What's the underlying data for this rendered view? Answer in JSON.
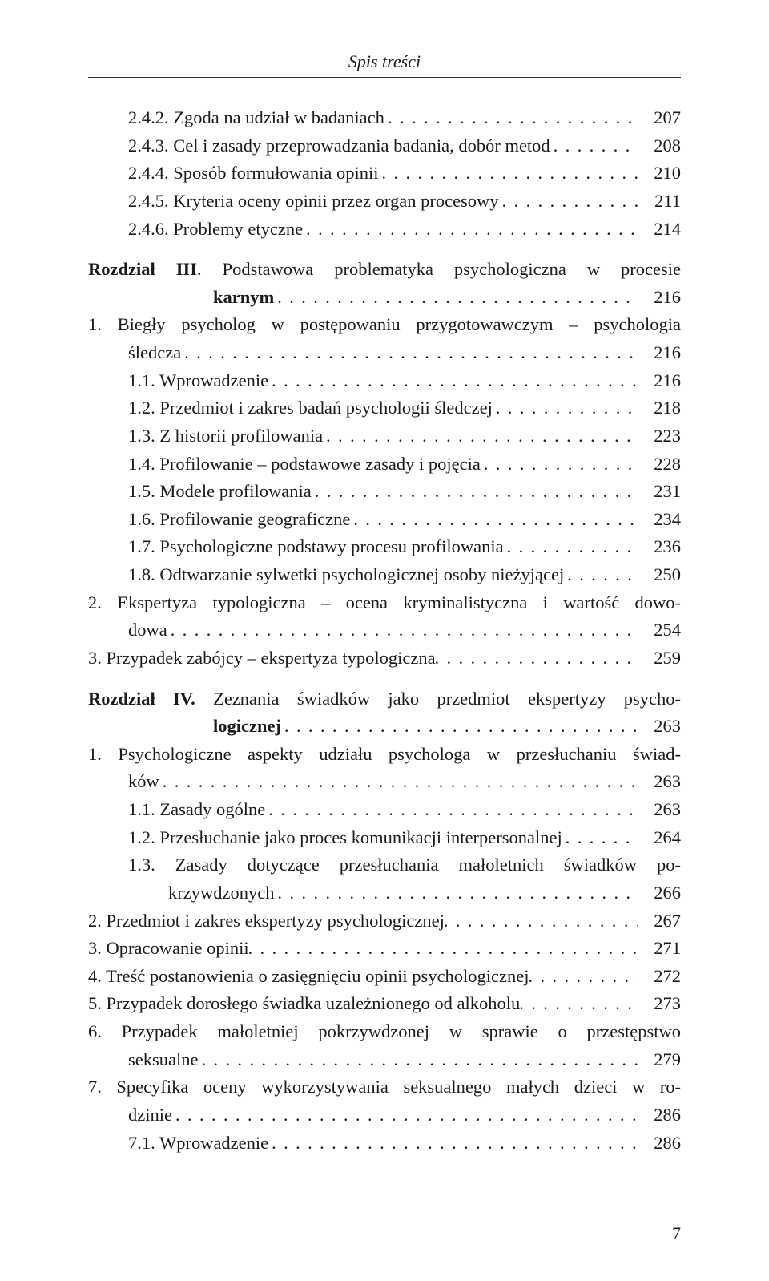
{
  "header": "Spis treści",
  "pageNumber": "7",
  "lines": [
    {
      "cls": "indent-1",
      "label": "2.4.2. Zgoda na udział w badaniach",
      "page": "207"
    },
    {
      "cls": "indent-1",
      "label": "2.4.3. Cel i zasady przeprowadzania badania, dobór metod",
      "sep": ". .",
      "page": "208"
    },
    {
      "cls": "indent-1",
      "label": "2.4.4. Sposób formułowania opinii",
      "page": "210"
    },
    {
      "cls": "indent-1",
      "label": "2.4.5. Kryteria oceny opinii przez organ procesowy",
      "page": "211"
    },
    {
      "cls": "indent-1",
      "label": "2.4.6. Problemy etyczne",
      "page": "214"
    },
    {
      "type": "ml",
      "cls": "hang-c",
      "first": "Rozdział III.  Podstawowa  problematyka  psychologiczna  w  procesie",
      "boldLen": 12,
      "lastLabel": "karnym",
      "lastCls": "",
      "lastPad": 156,
      "page": "216",
      "top": true
    },
    {
      "type": "ml",
      "cls": "hang-1",
      "first": "1. Biegły psycholog w postępowaniu przygotowawczym – psychologia",
      "lastLabel": "śledcza",
      "lastCls": "indent-1",
      "page": "216"
    },
    {
      "cls": "indent-1",
      "label": "1.1. Wprowadzenie",
      "page": "216"
    },
    {
      "cls": "indent-1",
      "label": "1.2. Przedmiot i zakres badań psychologii śledczej",
      "page": "218"
    },
    {
      "cls": "indent-1",
      "label": "1.3. Z historii profilowania",
      "page": "223"
    },
    {
      "cls": "indent-1",
      "label": "1.4. Profilowanie – podstawowe zasady i pojęcia",
      "page": "228"
    },
    {
      "cls": "indent-1",
      "label": "1.5. Modele profilowania",
      "page": "231"
    },
    {
      "cls": "indent-1",
      "label": "1.6. Profilowanie geograficzne",
      "page": "234"
    },
    {
      "cls": "indent-1",
      "label": "1.7. Psychologiczne podstawy procesu profilowania",
      "page": "236"
    },
    {
      "cls": "indent-1",
      "label": "1.8. Odtwarzanie sylwetki psychologicznej osoby nieżyjącej",
      "page": "250"
    },
    {
      "type": "ml",
      "cls": "hang-1",
      "first": "2. Ekspertyza typologiczna – ocena kryminalistyczna i wartość dowo-",
      "lastLabel": "dowa",
      "lastCls": "indent-1",
      "page": "254"
    },
    {
      "cls": "hang-1",
      "label": "3. Przypadek zabójcy – ekspertyza typologiczna",
      "page": "259"
    },
    {
      "type": "ml",
      "cls": "hang-c",
      "first": "Rozdział IV.  Zeznania świadków jako przedmiot ekspertyzy psycho-",
      "boldLen": 12,
      "lastLabel": "logicznej",
      "lastCls": "",
      "lastPad": 156,
      "page": "263",
      "top": true
    },
    {
      "type": "ml",
      "cls": "hang-1",
      "first": "1. Psychologiczne aspekty udziału psychologa w przesłuchaniu świad-",
      "lastLabel": "ków",
      "lastCls": "indent-1",
      "page": "263"
    },
    {
      "cls": "indent-1",
      "label": "1.1. Zasady ogólne",
      "page": "263"
    },
    {
      "cls": "indent-1",
      "label": "1.2. Przesłuchanie jako proces komunikacji interpersonalnej",
      "page": "264"
    },
    {
      "type": "ml",
      "cls": "indent-1",
      "first": "1.3. Zasady  dotyczące  przesłuchania  małoletnich  świadków  po-",
      "lastLabel": "krzywdzonych",
      "lastCls": "indent-2",
      "page": "266"
    },
    {
      "cls": "hang-1",
      "label": "2. Przedmiot i zakres ekspertyzy psychologicznej",
      "page": "267"
    },
    {
      "cls": "hang-1",
      "label": "3. Opracowanie opinii",
      "page": "271"
    },
    {
      "cls": "hang-1",
      "label": "4. Treść postanowienia o zasięgnięciu opinii psychologicznej",
      "page": "272"
    },
    {
      "cls": "hang-1",
      "label": "5. Przypadek dorosłego świadka uzależnionego od alkoholu",
      "page": "273"
    },
    {
      "type": "ml",
      "cls": "hang-1",
      "first": "6. Przypadek  małoletniej  pokrzywdzonej  w  sprawie  o  przestępstwo",
      "lastLabel": "seksualne",
      "lastCls": "indent-1",
      "page": "279"
    },
    {
      "type": "ml",
      "cls": "hang-1",
      "first": "7. Specyfika oceny wykorzystywania seksualnego małych dzieci w ro-",
      "lastLabel": "dzinie",
      "lastCls": "indent-1",
      "page": "286"
    },
    {
      "cls": "indent-1",
      "label": "7.1. Wprowadzenie",
      "page": "286"
    }
  ]
}
